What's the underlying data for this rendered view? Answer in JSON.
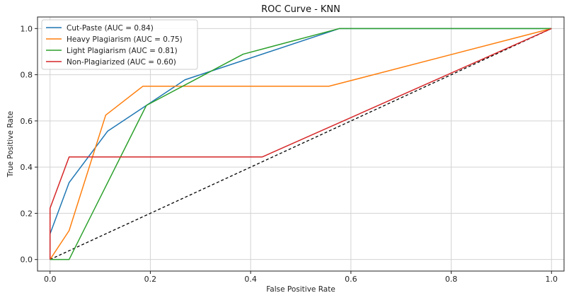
{
  "chart_data": {
    "type": "line",
    "title": "ROC Curve - KNN",
    "xlabel": "False Positive Rate",
    "ylabel": "True Positive Rate",
    "xlim": [
      -0.025,
      1.025
    ],
    "ylim": [
      -0.05,
      1.05
    ],
    "xticks": [
      0.0,
      0.2,
      0.4,
      0.6,
      0.8,
      1.0
    ],
    "yticks": [
      0.0,
      0.2,
      0.4,
      0.6,
      0.8,
      1.0
    ],
    "xtick_labels": [
      "0.0",
      "0.2",
      "0.4",
      "0.6",
      "0.8",
      "1.0"
    ],
    "ytick_labels": [
      "0.0",
      "0.2",
      "0.4",
      "0.6",
      "0.8",
      "1.0"
    ],
    "grid": true,
    "legend_position": "top-left",
    "series": [
      {
        "name": "Cut-Paste (AUC = 0.84)",
        "color": "#1f77b4",
        "x": [
          0.0,
          0.0,
          0.038,
          0.115,
          0.269,
          0.577,
          1.0
        ],
        "y": [
          0.0,
          0.111,
          0.333,
          0.556,
          0.778,
          1.0,
          1.0
        ]
      },
      {
        "name": "Heavy Plagiarism (AUC = 0.75)",
        "color": "#ff7f0e",
        "x": [
          0.0,
          0.038,
          0.111,
          0.185,
          0.556,
          1.0
        ],
        "y": [
          0.0,
          0.125,
          0.625,
          0.75,
          0.75,
          1.0
        ]
      },
      {
        "name": "Light Plagiarism (AUC = 0.81)",
        "color": "#2ca02c",
        "x": [
          0.0,
          0.038,
          0.192,
          0.385,
          0.577,
          1.0
        ],
        "y": [
          0.0,
          0.0,
          0.667,
          0.889,
          1.0,
          1.0
        ]
      },
      {
        "name": "Non-Plagiarized (AUC = 0.60)",
        "color": "#d62728",
        "x": [
          0.0,
          0.0,
          0.038,
          0.423,
          1.0
        ],
        "y": [
          0.0,
          0.222,
          0.444,
          0.444,
          1.0
        ]
      }
    ],
    "reference_line": {
      "style": "dashed",
      "color": "#000000",
      "x": [
        0.0,
        1.0
      ],
      "y": [
        0.0,
        1.0
      ]
    }
  }
}
